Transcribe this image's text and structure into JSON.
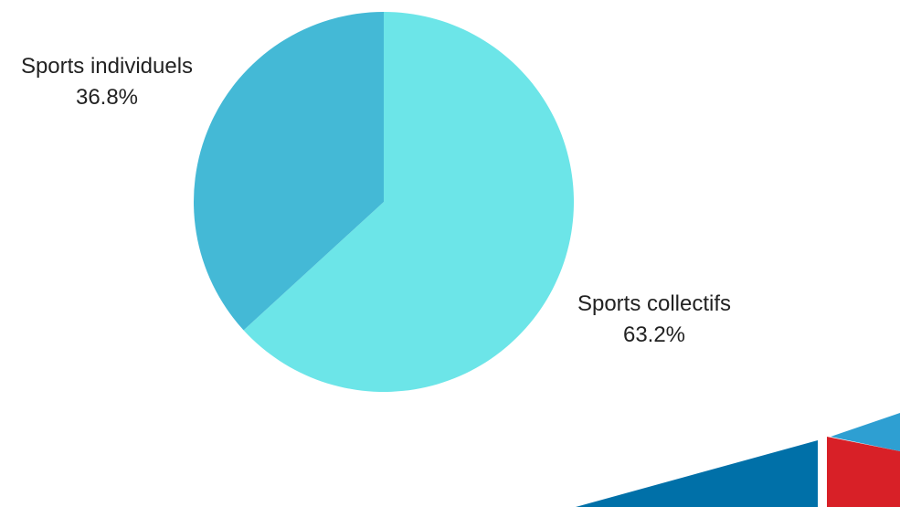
{
  "chart_data": {
    "type": "pie",
    "title": "",
    "start_angle_deg": 0,
    "direction": "clockwise",
    "label_placement": "outside",
    "slices": [
      {
        "label": "Sports collectifs",
        "value": 63.2,
        "value_label": "63.2%",
        "color": "#6ce5e8"
      },
      {
        "label": "Sports individuels",
        "value": 36.8,
        "value_label": "36.8%",
        "color": "#44b9d6"
      }
    ]
  },
  "decor": {
    "colors": {
      "blue_dark": "#0070a8",
      "blue_light": "#2e9fd2",
      "red": "#d82027",
      "divider": "#ffffff"
    }
  }
}
